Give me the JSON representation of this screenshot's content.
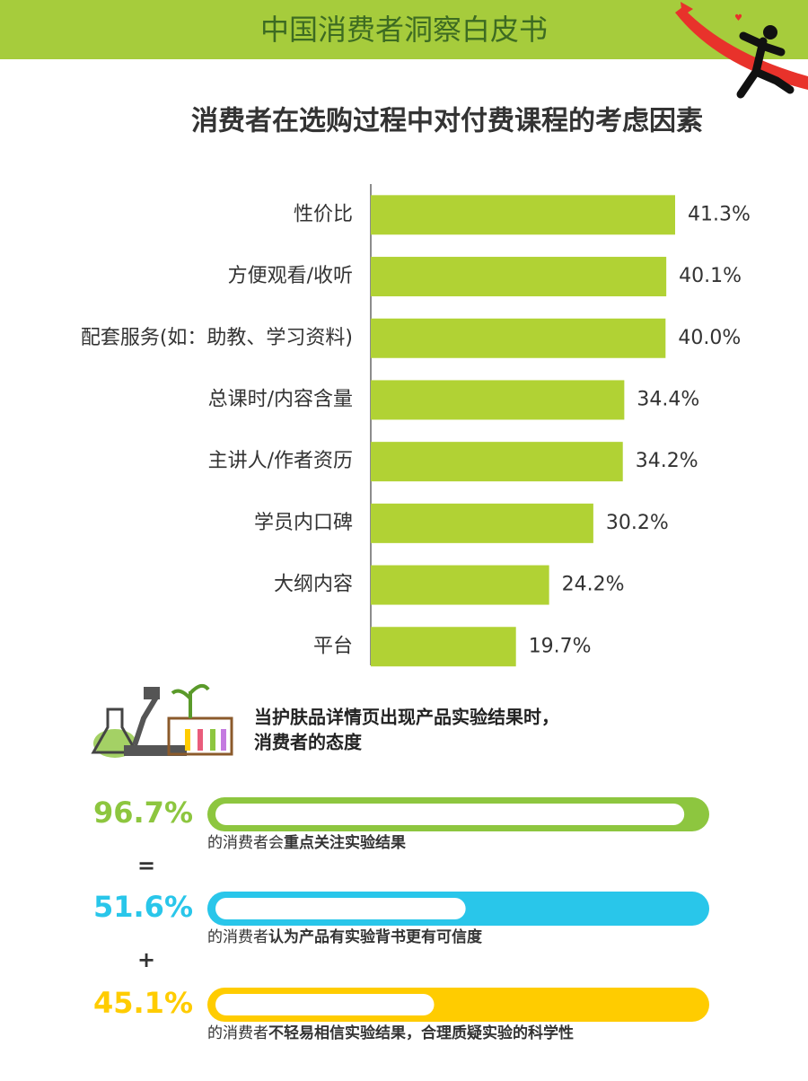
{
  "header": {
    "title": "中国消费者洞察白皮书"
  },
  "chart_data": {
    "type": "bar",
    "orientation": "horizontal",
    "title": "消费者在选购过程中对付费课程的考虑因素",
    "categories": [
      "性价比",
      "方便观看/收听",
      "配套服务(如：助教、学习资料)",
      "总课时/内容含量",
      "主讲人/作者资历",
      "学员内口碑",
      "大纲内容",
      "平台"
    ],
    "values": [
      41.3,
      40.1,
      40.0,
      34.4,
      34.2,
      30.2,
      24.2,
      19.7
    ],
    "value_labels": [
      "41.3%",
      "40.1%",
      "40.0%",
      "34.4%",
      "34.2%",
      "30.2%",
      "24.2%",
      "19.7%"
    ],
    "color": "#b1d234"
  },
  "attitudes": {
    "title": [
      "当护肤品详情页出现产品实验结果时，",
      "消费者的态度"
    ],
    "items": [
      {
        "value": 96.7,
        "value_label": "96.7%",
        "caption": "的消费者会",
        "caption_bold": "重点关注实验结果",
        "color": "#8dc63f"
      },
      {
        "value": 51.6,
        "value_label": "51.6%",
        "caption": "的消费者",
        "caption_bold": "认为产品有实验背书更有可信度",
        "color": "#29c6ea"
      },
      {
        "value": 45.1,
        "value_label": "45.1%",
        "caption": "的消费者",
        "caption_bold": "不轻易相信实验结果，合理质疑实验的科学性",
        "color": "#ffcc00"
      }
    ],
    "operators": [
      "=",
      "+"
    ]
  }
}
